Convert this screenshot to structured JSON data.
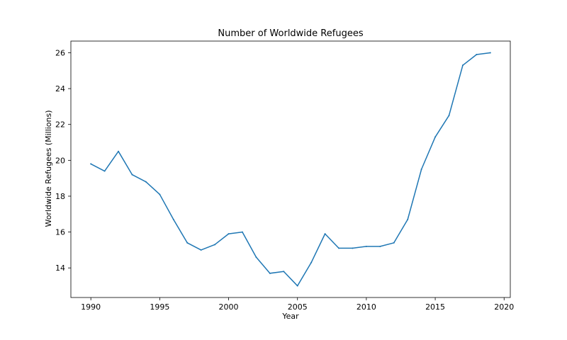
{
  "chart_data": {
    "type": "line",
    "title": "Number of Worldwide Refugees",
    "xlabel": "Year",
    "ylabel": "Worldwide Refugees (Millions)",
    "xlim": [
      1988.55,
      2020.45
    ],
    "ylim": [
      12.35,
      26.65
    ],
    "xticks": [
      1990,
      1995,
      2000,
      2005,
      2010,
      2015,
      2020
    ],
    "yticks": [
      14,
      16,
      18,
      20,
      22,
      24,
      26
    ],
    "grid": false,
    "color": "#1f77b4",
    "x": [
      1990,
      1991,
      1992,
      1993,
      1994,
      1995,
      1996,
      1997,
      1998,
      1999,
      2000,
      2001,
      2002,
      2003,
      2004,
      2005,
      2006,
      2007,
      2008,
      2009,
      2010,
      2011,
      2012,
      2013,
      2014,
      2015,
      2016,
      2017,
      2018,
      2019
    ],
    "y": [
      19.8,
      19.4,
      20.5,
      19.2,
      18.8,
      18.1,
      16.7,
      15.4,
      15.0,
      15.3,
      15.9,
      16.0,
      14.6,
      13.7,
      13.8,
      13.0,
      14.3,
      15.9,
      15.1,
      15.1,
      15.2,
      15.2,
      15.4,
      16.7,
      19.5,
      21.3,
      22.5,
      25.3,
      25.9,
      26.0
    ]
  }
}
